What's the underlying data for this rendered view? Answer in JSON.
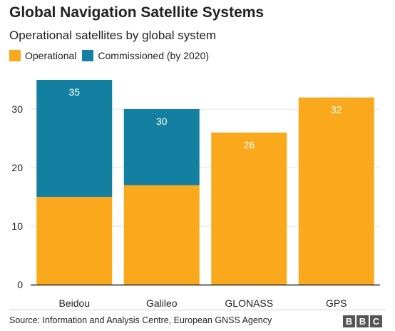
{
  "title": "Global Navigation Satellite Systems",
  "subtitle": "Operational satellites by global system",
  "source": "Source: Information and Analysis Centre, European GNSS Agency",
  "brand": [
    "B",
    "B",
    "C"
  ],
  "colors": {
    "operational": "#f9a91b",
    "commissioned": "#1380a1",
    "axis": "#222222",
    "grid": "#e0e0e0"
  },
  "chart_data": {
    "type": "bar",
    "stacked": true,
    "categories": [
      "Beidou",
      "Galileo",
      "GLONASS",
      "GPS"
    ],
    "series": [
      {
        "name": "Operational",
        "values": [
          15,
          17,
          26,
          32
        ]
      },
      {
        "name": "Commissioned (by 2020)",
        "values": [
          20,
          13,
          0,
          0
        ]
      }
    ],
    "totals": [
      35,
      30,
      26,
      32
    ],
    "yticks": [
      0,
      10,
      20,
      30
    ],
    "ylim": [
      0,
      35
    ],
    "legend_position": "top-left",
    "grid": true
  }
}
